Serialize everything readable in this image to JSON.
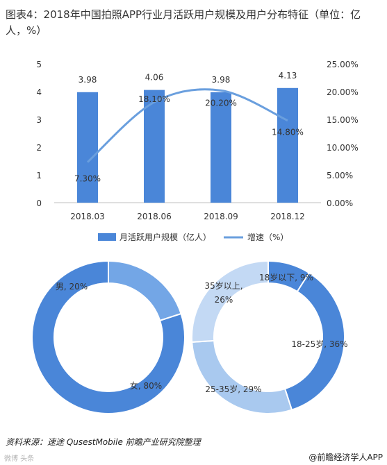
{
  "title": "图表4：2018年中国拍照APP行业月活跃用户规模及用户分布特征（单位：亿人，%）",
  "source": "资料来源：速途 QusestMobile  前瞻产业研究院整理",
  "credit": "@前瞻经济学人APP",
  "watermark_bottom_left": "微博 头条",
  "colors": {
    "bar": "#4a86d8",
    "line": "#6a9fde",
    "donut_dark": "#4a86d8",
    "donut_mid": "#73a6e6",
    "donut_light": "#a9c9ef",
    "donut_lighter": "#c3d9f4"
  },
  "chart_data": [
    {
      "type": "bar",
      "categories": [
        "2018.03",
        "2018.06",
        "2018.09",
        "2018.12"
      ],
      "series": [
        {
          "name": "月活跃用户规模（亿人）",
          "type": "bar",
          "axis": "left",
          "values": [
            3.98,
            4.06,
            3.98,
            4.13
          ],
          "labels": [
            "3.98",
            "4.06",
            "3.98",
            "4.13"
          ]
        },
        {
          "name": "增速（%）",
          "type": "line",
          "axis": "right",
          "values": [
            7.3,
            18.1,
            20.2,
            14.8
          ],
          "labels": [
            "7.30%",
            "18.10%",
            "20.20%",
            "14.80%"
          ]
        }
      ],
      "ylim": [
        0,
        5
      ],
      "y_ticks": [
        "0",
        "1",
        "2",
        "3",
        "4",
        "5"
      ],
      "y2lim": [
        0,
        25
      ],
      "y2_ticks": [
        "0.00%",
        "5.00%",
        "10.00%",
        "15.00%",
        "20.00%",
        "25.00%"
      ],
      "legend": "bottom",
      "grid": false
    },
    {
      "type": "pie",
      "donut": true,
      "slices": [
        {
          "label": "男, 20%",
          "value": 20
        },
        {
          "label": "女, 80%",
          "value": 80
        }
      ]
    },
    {
      "type": "pie",
      "donut": true,
      "slices": [
        {
          "label": "18岁以下, 9%",
          "value": 9
        },
        {
          "label": "18-25岁, 36%",
          "value": 36
        },
        {
          "label": "25-35岁, 29%",
          "value": 29
        },
        {
          "label": "35岁以上, 26%",
          "value": 26
        }
      ]
    }
  ]
}
